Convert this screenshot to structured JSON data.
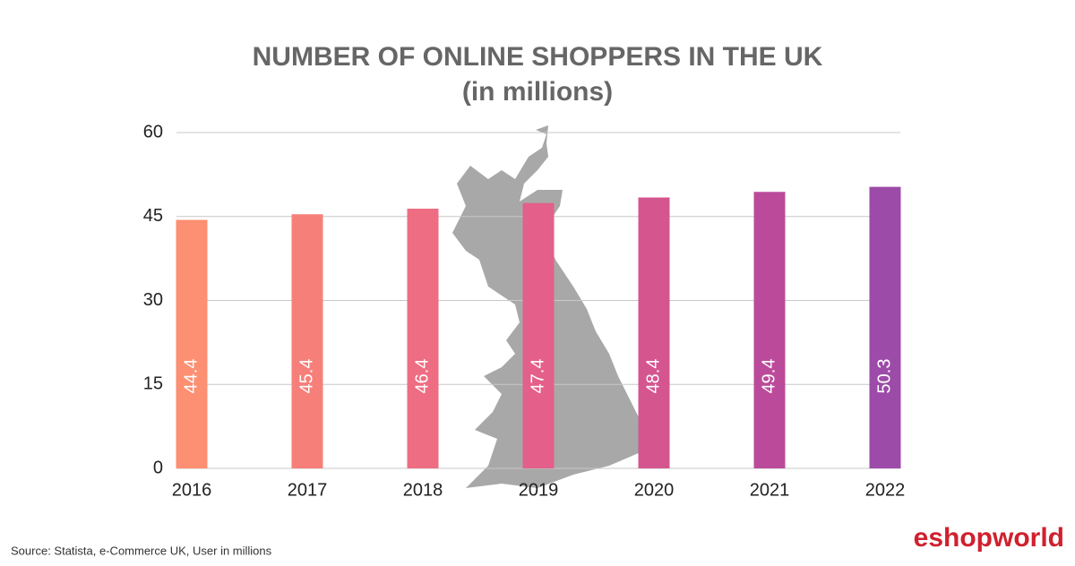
{
  "chart_data": {
    "type": "bar",
    "title": "NUMBER OF ONLINE SHOPPERS IN THE UK",
    "subtitle": "(in millions)",
    "categories": [
      "2016",
      "2017",
      "2018",
      "2019",
      "2020",
      "2021",
      "2022"
    ],
    "values": [
      44.4,
      45.4,
      46.4,
      47.4,
      48.4,
      49.4,
      50.3
    ],
    "colors": [
      "#fd8f72",
      "#f77f7a",
      "#ee6d82",
      "#e45f8a",
      "#d5558f",
      "#bb4b9a",
      "#9c4ba8"
    ],
    "ylim": [
      0,
      60
    ],
    "yticks": [
      0,
      15,
      30,
      45,
      60
    ],
    "grid": true
  },
  "footer": {
    "source": "Source: Statista, e-Commerce UK, User in millions",
    "logo": "eshopworld"
  }
}
